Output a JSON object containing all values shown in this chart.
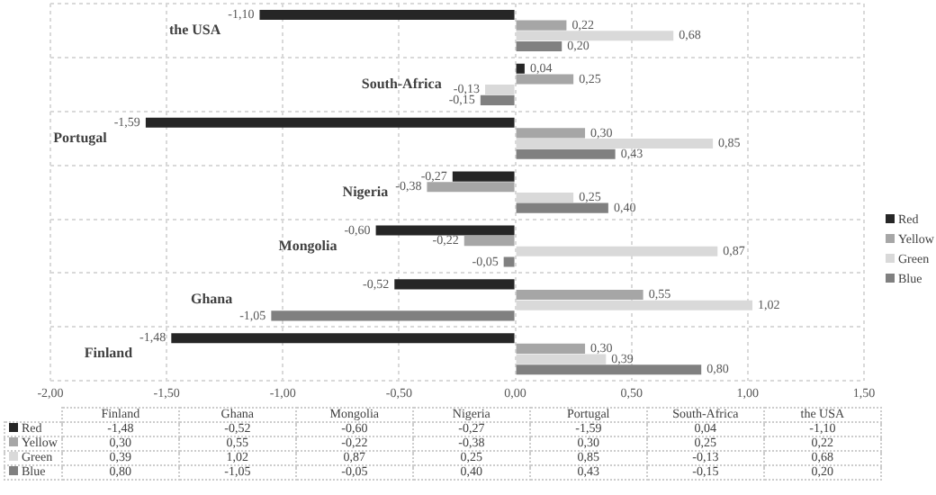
{
  "chart_data": {
    "type": "bar",
    "orientation": "horizontal",
    "categories": [
      "the USA",
      "South-Africa",
      "Portugal",
      "Nigeria",
      "Mongolia",
      "Ghana",
      "Finland"
    ],
    "series": [
      {
        "name": "Red",
        "color": "#262626",
        "values": [
          -1.1,
          0.04,
          -1.59,
          -0.27,
          -0.6,
          -0.52,
          -1.48
        ],
        "value_labels": [
          "-1,10",
          "0,04",
          "-1,59",
          "-0,27",
          "-0,60",
          "-0,52",
          "-1,48"
        ]
      },
      {
        "name": "Yellow",
        "color": "#a6a6a6",
        "values": [
          0.22,
          0.25,
          0.3,
          -0.38,
          -0.22,
          0.55,
          0.3
        ],
        "value_labels": [
          "0,22",
          "0,25",
          "0,30",
          "-0,38",
          "-0,22",
          "0,55",
          "0,30"
        ]
      },
      {
        "name": "Green",
        "color": "#d9d9d9",
        "values": [
          0.68,
          -0.13,
          0.85,
          0.25,
          0.87,
          1.02,
          0.39
        ],
        "value_labels": [
          "0,68",
          "-0,13",
          "0,85",
          "0,25",
          "0,87",
          "1,02",
          "0,39"
        ]
      },
      {
        "name": "Blue",
        "color": "#808080",
        "values": [
          0.2,
          -0.15,
          0.43,
          0.4,
          -0.05,
          -1.05,
          0.8
        ],
        "value_labels": [
          "0,20",
          "-0,15",
          "0,43",
          "0,40",
          "-0,05",
          "-1,05",
          "0,80"
        ]
      }
    ],
    "xlim": [
      -2,
      1.5
    ],
    "xticks": [
      {
        "value": -2,
        "label": "-2,00"
      },
      {
        "value": -1.5,
        "label": "-1,50"
      },
      {
        "value": -1,
        "label": "-1,00"
      },
      {
        "value": -0.5,
        "label": "-0,50"
      },
      {
        "value": 0,
        "label": "0,00"
      },
      {
        "value": 0.5,
        "label": "0,50"
      },
      {
        "value": 1,
        "label": "1,00"
      },
      {
        "value": 1.5,
        "label": "1,50"
      }
    ],
    "grid": true,
    "legend": "right"
  }
}
